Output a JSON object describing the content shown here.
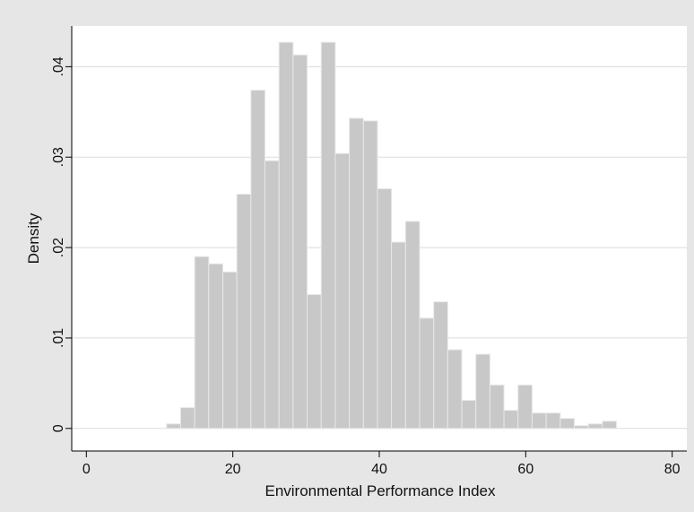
{
  "chart_data": {
    "type": "bar",
    "title": "",
    "xlabel": "Environmental Performance Index",
    "ylabel": "Density",
    "xlim": [
      -2,
      82
    ],
    "ylim": [
      -0.0025,
      0.0445
    ],
    "x_ticks": [
      0,
      20,
      40,
      60,
      80
    ],
    "x_tick_labels": [
      "0",
      "20",
      "40",
      "60",
      "80"
    ],
    "y_ticks": [
      0,
      0.01,
      0.02,
      0.03,
      0.04
    ],
    "y_tick_labels": [
      "0",
      ".01",
      ".02",
      ".03",
      ".04"
    ],
    "grid": true,
    "legend": "none",
    "bin_width": 1.92,
    "bin_start": 10.95,
    "values": [
      0.0005,
      0.0023,
      0.019,
      0.0182,
      0.0173,
      0.0259,
      0.0374,
      0.0296,
      0.0427,
      0.0413,
      0.0148,
      0.0427,
      0.0304,
      0.0343,
      0.034,
      0.0265,
      0.0206,
      0.0229,
      0.0122,
      0.014,
      0.0087,
      0.0031,
      0.0082,
      0.0048,
      0.002,
      0.0048,
      0.0017,
      0.0017,
      0.0011,
      0.0003,
      0.0005,
      0.0008
    ],
    "colors": {
      "outer_background": "#e6e6e6",
      "plot_background": "#ffffff",
      "bar_fill": "#c8c8c8",
      "bar_stroke": "#e8e8e8",
      "grid": "#dcdcdc",
      "axis": "#000000"
    }
  }
}
